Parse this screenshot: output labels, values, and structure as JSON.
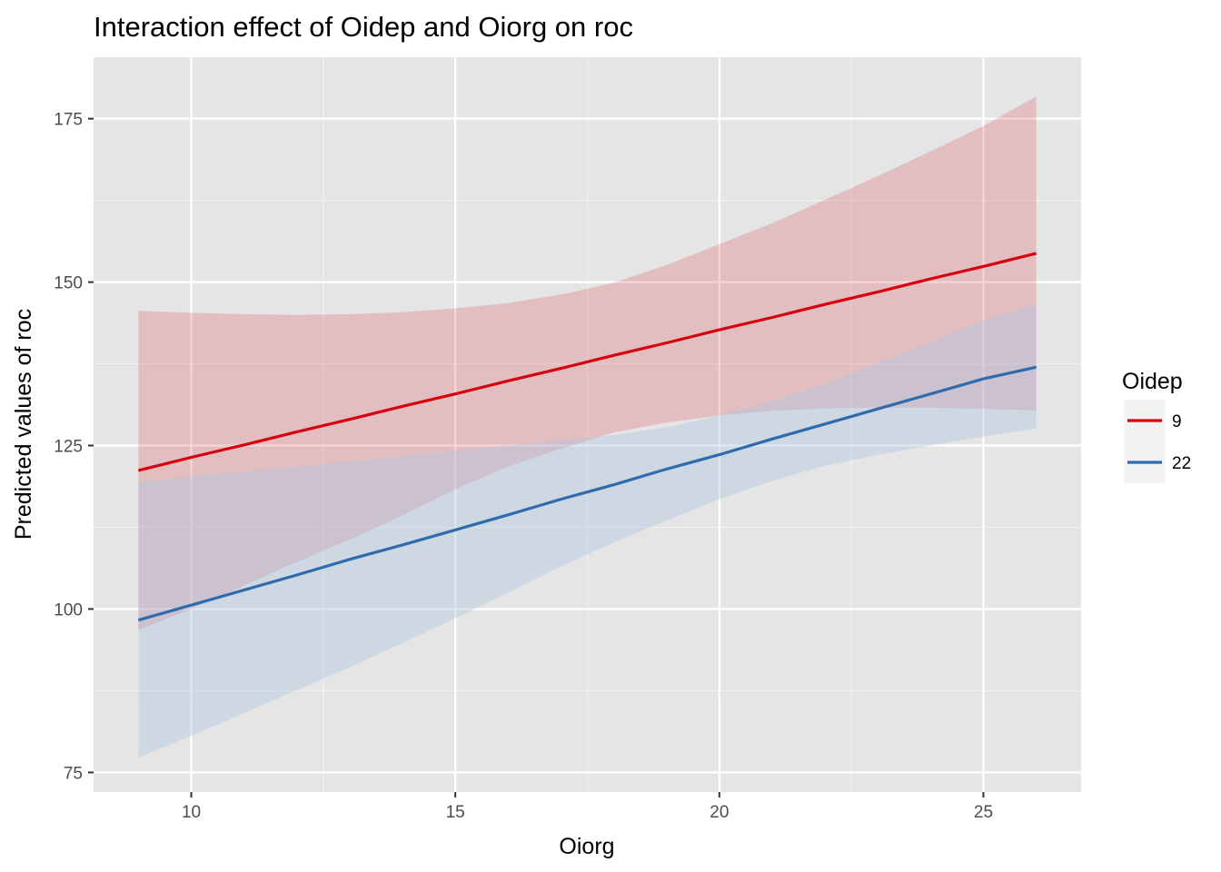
{
  "chart_data": {
    "type": "line",
    "title": "Interaction effect of Oidep and Oiorg on roc",
    "xlabel": "Oiorg",
    "ylabel": "Predicted values of roc",
    "xlim": [
      8.15,
      26.85
    ],
    "ylim": [
      72.0,
      184.4
    ],
    "x_ticks": [
      10,
      15,
      20,
      25
    ],
    "x_minor_ticks": [
      12.5,
      17.5,
      22.5
    ],
    "y_ticks": [
      75,
      100,
      125,
      150,
      175
    ],
    "y_minor_ticks": [
      87.5,
      112.5,
      137.5,
      162.5
    ],
    "x_tick_labels": [
      "10",
      "15",
      "20",
      "25"
    ],
    "y_tick_labels": [
      "75",
      "100",
      "125",
      "150",
      "175"
    ],
    "grid": true,
    "background": "#e5e5e5",
    "legend": {
      "title": "Oidep",
      "position": "right"
    },
    "x": [
      9,
      10,
      11,
      12,
      13,
      14,
      15,
      16,
      17,
      18,
      19,
      20,
      21,
      22,
      23,
      24,
      25,
      26
    ],
    "series": [
      {
        "name": "9",
        "color": "#d7000f",
        "fill_color": "#d7000f",
        "values": [
          121.2,
          123.2,
          125.1,
          127.1,
          129.0,
          131.0,
          132.9,
          134.9,
          136.8,
          138.8,
          140.7,
          142.7,
          144.6,
          146.6,
          148.5,
          150.5,
          152.4,
          154.4
        ],
        "lower": [
          96.8,
          100.0,
          103.6,
          107.2,
          110.6,
          114.3,
          118.3,
          121.8,
          124.5,
          127.0,
          128.5,
          129.6,
          130.3,
          130.7,
          130.8,
          130.8,
          130.6,
          130.4
        ],
        "upper": [
          145.6,
          145.3,
          145.1,
          145.0,
          145.1,
          145.4,
          146.0,
          146.8,
          148.1,
          149.9,
          152.6,
          155.8,
          159.0,
          162.6,
          166.2,
          170.0,
          173.9,
          178.4
        ]
      },
      {
        "name": "22",
        "color": "#2f6bad",
        "fill_color": "#aec6df",
        "values": [
          98.3,
          100.6,
          102.9,
          105.2,
          107.6,
          109.8,
          112.1,
          114.4,
          116.8,
          119.0,
          121.4,
          123.6,
          126.0,
          128.3,
          130.6,
          132.9,
          135.2,
          137.0
        ],
        "lower": [
          77.3,
          80.6,
          84.1,
          87.6,
          91.1,
          94.8,
          98.6,
          102.5,
          106.5,
          110.2,
          113.5,
          116.8,
          119.6,
          121.9,
          123.6,
          125.0,
          126.4,
          127.6
        ],
        "upper": [
          119.4,
          120.3,
          121.0,
          121.8,
          122.6,
          123.4,
          124.2,
          125.0,
          125.8,
          126.6,
          127.8,
          129.6,
          131.8,
          134.5,
          137.6,
          140.8,
          144.2,
          146.6
        ]
      }
    ]
  }
}
